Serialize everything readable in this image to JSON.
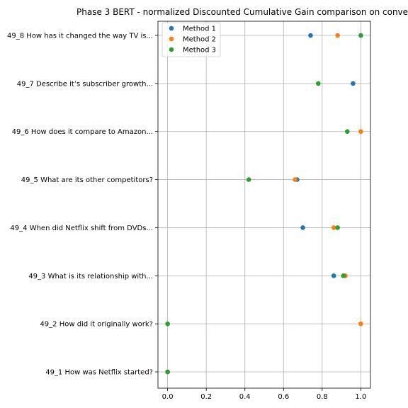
{
  "chart_data": {
    "type": "scatter",
    "title": "Phase 3 BERT - normalized Discounted Cumulative Gain comparison on conve",
    "xlabel": "",
    "ylabel": "",
    "xlim": [
      -0.05,
      1.05
    ],
    "x_ticks": [
      0.0,
      0.2,
      0.4,
      0.6,
      0.8,
      1.0
    ],
    "x_tick_labels": [
      "0.0",
      "0.2",
      "0.4",
      "0.6",
      "0.8",
      "1.0"
    ],
    "categories": [
      "49_1 How was Netflix started?",
      "49_2 How did it originally work?",
      "49_3 What is its relationship with...",
      "49_4 When did Netflix shift from DVDs...",
      "49_5 What are its other competitors?",
      "49_6 How does it compare to Amazon...",
      "49_7 Describe it’s subscriber growth...",
      "49_8 How has it changed the way TV is..."
    ],
    "series": [
      {
        "name": "Method 1",
        "color": "#1f77b4",
        "values": [
          0.0,
          null,
          0.86,
          0.7,
          0.67,
          null,
          0.96,
          0.74
        ]
      },
      {
        "name": "Method 2",
        "color": "#ff7f0e",
        "values": [
          0.0,
          1.0,
          0.92,
          0.86,
          0.66,
          1.0,
          null,
          0.88
        ]
      },
      {
        "name": "Method 3",
        "color": "#2ca02c",
        "values": [
          0.0,
          0.0,
          0.91,
          0.88,
          0.42,
          0.93,
          0.78,
          1.0
        ]
      }
    ],
    "grid": true,
    "legend_position": "top-left"
  }
}
